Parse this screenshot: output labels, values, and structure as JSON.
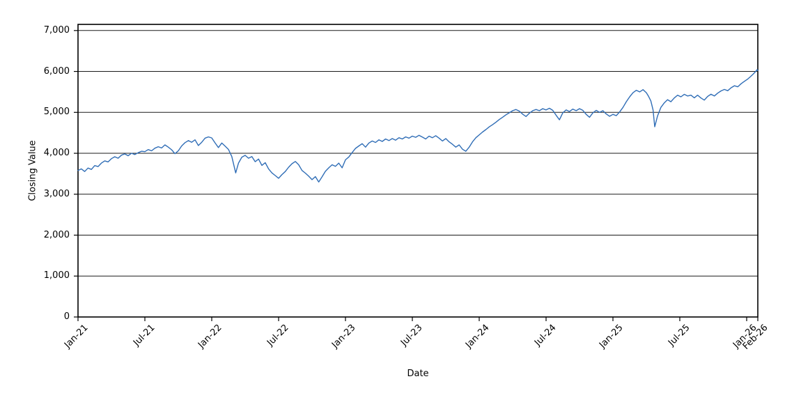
{
  "chart_data": {
    "type": "line",
    "title": "",
    "xlabel": "Date",
    "ylabel": "Closing Value",
    "legend": "none",
    "grid": "horizontal",
    "background_color": "#ffffff",
    "line_color": "#2f6db6",
    "grid_color": "#1a1a1a",
    "frame_color": "#000000",
    "xlim_months_since_jan2021": [
      0,
      61
    ],
    "ylim": [
      0,
      7150
    ],
    "yticks": [
      {
        "label": "0",
        "v": 0
      },
      {
        "label": "1,000",
        "v": 1000
      },
      {
        "label": "2,000",
        "v": 2000
      },
      {
        "label": "3,000",
        "v": 3000
      },
      {
        "label": "4,000",
        "v": 4000
      },
      {
        "label": "5,000",
        "v": 5000
      },
      {
        "label": "6,000",
        "v": 6000
      },
      {
        "label": "7,000",
        "v": 7000
      }
    ],
    "xticks": [
      {
        "label": "Jan-21",
        "t": 0
      },
      {
        "label": "Jul-21",
        "t": 6
      },
      {
        "label": "Jan-22",
        "t": 12
      },
      {
        "label": "Jul-22",
        "t": 18
      },
      {
        "label": "Jan-23",
        "t": 24
      },
      {
        "label": "Jul-23",
        "t": 30
      },
      {
        "label": "Jan-24",
        "t": 36
      },
      {
        "label": "Jul-24",
        "t": 42
      },
      {
        "label": "Jan-25",
        "t": 48
      },
      {
        "label": "Jul-25",
        "t": 54
      },
      {
        "label": "Jan-26",
        "t": 60
      },
      {
        "label": "Feb-26",
        "t": 61
      }
    ],
    "series": [
      {
        "name": "Closing Value",
        "x_unit": "months since Jan-2021",
        "points": [
          [
            0,
            3580
          ],
          [
            0.3,
            3620
          ],
          [
            0.6,
            3555
          ],
          [
            0.9,
            3640
          ],
          [
            1.2,
            3605
          ],
          [
            1.5,
            3700
          ],
          [
            1.8,
            3675
          ],
          [
            2.1,
            3760
          ],
          [
            2.4,
            3815
          ],
          [
            2.7,
            3790
          ],
          [
            3,
            3870
          ],
          [
            3.3,
            3915
          ],
          [
            3.6,
            3880
          ],
          [
            3.9,
            3955
          ],
          [
            4.2,
            3985
          ],
          [
            4.5,
            3940
          ],
          [
            4.8,
            4000
          ],
          [
            5.1,
            3970
          ],
          [
            5.4,
            4015
          ],
          [
            5.7,
            4050
          ],
          [
            6,
            4040
          ],
          [
            6.3,
            4090
          ],
          [
            6.6,
            4060
          ],
          [
            6.9,
            4125
          ],
          [
            7.2,
            4160
          ],
          [
            7.5,
            4130
          ],
          [
            7.8,
            4205
          ],
          [
            8.1,
            4150
          ],
          [
            8.4,
            4085
          ],
          [
            8.7,
            3990
          ],
          [
            9,
            4060
          ],
          [
            9.3,
            4180
          ],
          [
            9.6,
            4260
          ],
          [
            9.9,
            4310
          ],
          [
            10.2,
            4270
          ],
          [
            10.5,
            4330
          ],
          [
            10.8,
            4190
          ],
          [
            11.1,
            4270
          ],
          [
            11.4,
            4370
          ],
          [
            11.7,
            4400
          ],
          [
            12,
            4375
          ],
          [
            12.3,
            4255
          ],
          [
            12.6,
            4140
          ],
          [
            12.9,
            4250
          ],
          [
            13.2,
            4175
          ],
          [
            13.5,
            4095
          ],
          [
            13.8,
            3920
          ],
          [
            14,
            3690
          ],
          [
            14.15,
            3520
          ],
          [
            14.4,
            3760
          ],
          [
            14.7,
            3905
          ],
          [
            15,
            3950
          ],
          [
            15.3,
            3880
          ],
          [
            15.6,
            3920
          ],
          [
            15.9,
            3795
          ],
          [
            16.2,
            3860
          ],
          [
            16.5,
            3705
          ],
          [
            16.8,
            3770
          ],
          [
            17.1,
            3620
          ],
          [
            17.4,
            3520
          ],
          [
            17.7,
            3455
          ],
          [
            18,
            3390
          ],
          [
            18.3,
            3480
          ],
          [
            18.6,
            3555
          ],
          [
            18.9,
            3660
          ],
          [
            19.2,
            3745
          ],
          [
            19.5,
            3800
          ],
          [
            19.8,
            3720
          ],
          [
            20.1,
            3580
          ],
          [
            20.4,
            3515
          ],
          [
            20.7,
            3440
          ],
          [
            21,
            3355
          ],
          [
            21.3,
            3430
          ],
          [
            21.6,
            3300
          ],
          [
            21.9,
            3425
          ],
          [
            22.2,
            3560
          ],
          [
            22.5,
            3645
          ],
          [
            22.8,
            3720
          ],
          [
            23.1,
            3680
          ],
          [
            23.4,
            3760
          ],
          [
            23.7,
            3645
          ],
          [
            24,
            3840
          ],
          [
            24.3,
            3910
          ],
          [
            24.6,
            4020
          ],
          [
            24.9,
            4120
          ],
          [
            25.2,
            4180
          ],
          [
            25.5,
            4235
          ],
          [
            25.8,
            4150
          ],
          [
            26.1,
            4250
          ],
          [
            26.4,
            4300
          ],
          [
            26.7,
            4265
          ],
          [
            27,
            4330
          ],
          [
            27.3,
            4290
          ],
          [
            27.6,
            4350
          ],
          [
            27.9,
            4310
          ],
          [
            28.2,
            4360
          ],
          [
            28.5,
            4320
          ],
          [
            28.8,
            4380
          ],
          [
            29.1,
            4350
          ],
          [
            29.4,
            4400
          ],
          [
            29.7,
            4370
          ],
          [
            30,
            4420
          ],
          [
            30.3,
            4390
          ],
          [
            30.6,
            4440
          ],
          [
            30.9,
            4395
          ],
          [
            31.2,
            4350
          ],
          [
            31.5,
            4420
          ],
          [
            31.8,
            4380
          ],
          [
            32.1,
            4430
          ],
          [
            32.4,
            4370
          ],
          [
            32.7,
            4300
          ],
          [
            33,
            4360
          ],
          [
            33.3,
            4280
          ],
          [
            33.6,
            4220
          ],
          [
            33.9,
            4150
          ],
          [
            34.2,
            4205
          ],
          [
            34.5,
            4100
          ],
          [
            34.8,
            4050
          ],
          [
            35.1,
            4150
          ],
          [
            35.4,
            4280
          ],
          [
            35.7,
            4380
          ],
          [
            36,
            4450
          ],
          [
            36.3,
            4520
          ],
          [
            36.6,
            4580
          ],
          [
            36.9,
            4645
          ],
          [
            37.2,
            4700
          ],
          [
            37.5,
            4760
          ],
          [
            37.8,
            4825
          ],
          [
            38.1,
            4880
          ],
          [
            38.4,
            4940
          ],
          [
            38.7,
            4990
          ],
          [
            39,
            5040
          ],
          [
            39.3,
            5070
          ],
          [
            39.6,
            5030
          ],
          [
            39.9,
            4955
          ],
          [
            40.2,
            4900
          ],
          [
            40.5,
            4980
          ],
          [
            40.8,
            5040
          ],
          [
            41.1,
            5070
          ],
          [
            41.4,
            5040
          ],
          [
            41.7,
            5090
          ],
          [
            42,
            5060
          ],
          [
            42.3,
            5100
          ],
          [
            42.6,
            5050
          ],
          [
            42.9,
            4930
          ],
          [
            43.2,
            4820
          ],
          [
            43.5,
            4990
          ],
          [
            43.8,
            5060
          ],
          [
            44.1,
            5020
          ],
          [
            44.4,
            5080
          ],
          [
            44.7,
            5040
          ],
          [
            45,
            5090
          ],
          [
            45.3,
            5050
          ],
          [
            45.6,
            4950
          ],
          [
            45.9,
            4880
          ],
          [
            46.2,
            4990
          ],
          [
            46.5,
            5050
          ],
          [
            46.8,
            5000
          ],
          [
            47.1,
            5040
          ],
          [
            47.4,
            4960
          ],
          [
            47.7,
            4905
          ],
          [
            48,
            4950
          ],
          [
            48.3,
            4920
          ],
          [
            48.6,
            5010
          ],
          [
            48.9,
            5120
          ],
          [
            49.2,
            5260
          ],
          [
            49.5,
            5380
          ],
          [
            49.8,
            5480
          ],
          [
            50.1,
            5540
          ],
          [
            50.4,
            5500
          ],
          [
            50.7,
            5555
          ],
          [
            51,
            5480
          ],
          [
            51.2,
            5390
          ],
          [
            51.4,
            5280
          ],
          [
            51.6,
            5060
          ],
          [
            51.75,
            4650
          ],
          [
            52,
            4910
          ],
          [
            52.3,
            5120
          ],
          [
            52.6,
            5230
          ],
          [
            52.9,
            5310
          ],
          [
            53.2,
            5260
          ],
          [
            53.5,
            5350
          ],
          [
            53.8,
            5420
          ],
          [
            54.1,
            5380
          ],
          [
            54.4,
            5440
          ],
          [
            54.7,
            5400
          ],
          [
            55,
            5420
          ],
          [
            55.3,
            5355
          ],
          [
            55.6,
            5420
          ],
          [
            55.9,
            5350
          ],
          [
            56.2,
            5300
          ],
          [
            56.5,
            5390
          ],
          [
            56.8,
            5445
          ],
          [
            57.1,
            5400
          ],
          [
            57.4,
            5470
          ],
          [
            57.7,
            5525
          ],
          [
            58,
            5560
          ],
          [
            58.3,
            5530
          ],
          [
            58.6,
            5600
          ],
          [
            58.9,
            5650
          ],
          [
            59.2,
            5625
          ],
          [
            59.5,
            5700
          ],
          [
            59.8,
            5760
          ],
          [
            60.1,
            5815
          ],
          [
            60.35,
            5875
          ],
          [
            60.6,
            5940
          ],
          [
            60.8,
            6000
          ],
          [
            60.95,
            6045
          ],
          [
            61,
            6020
          ]
        ]
      }
    ]
  }
}
